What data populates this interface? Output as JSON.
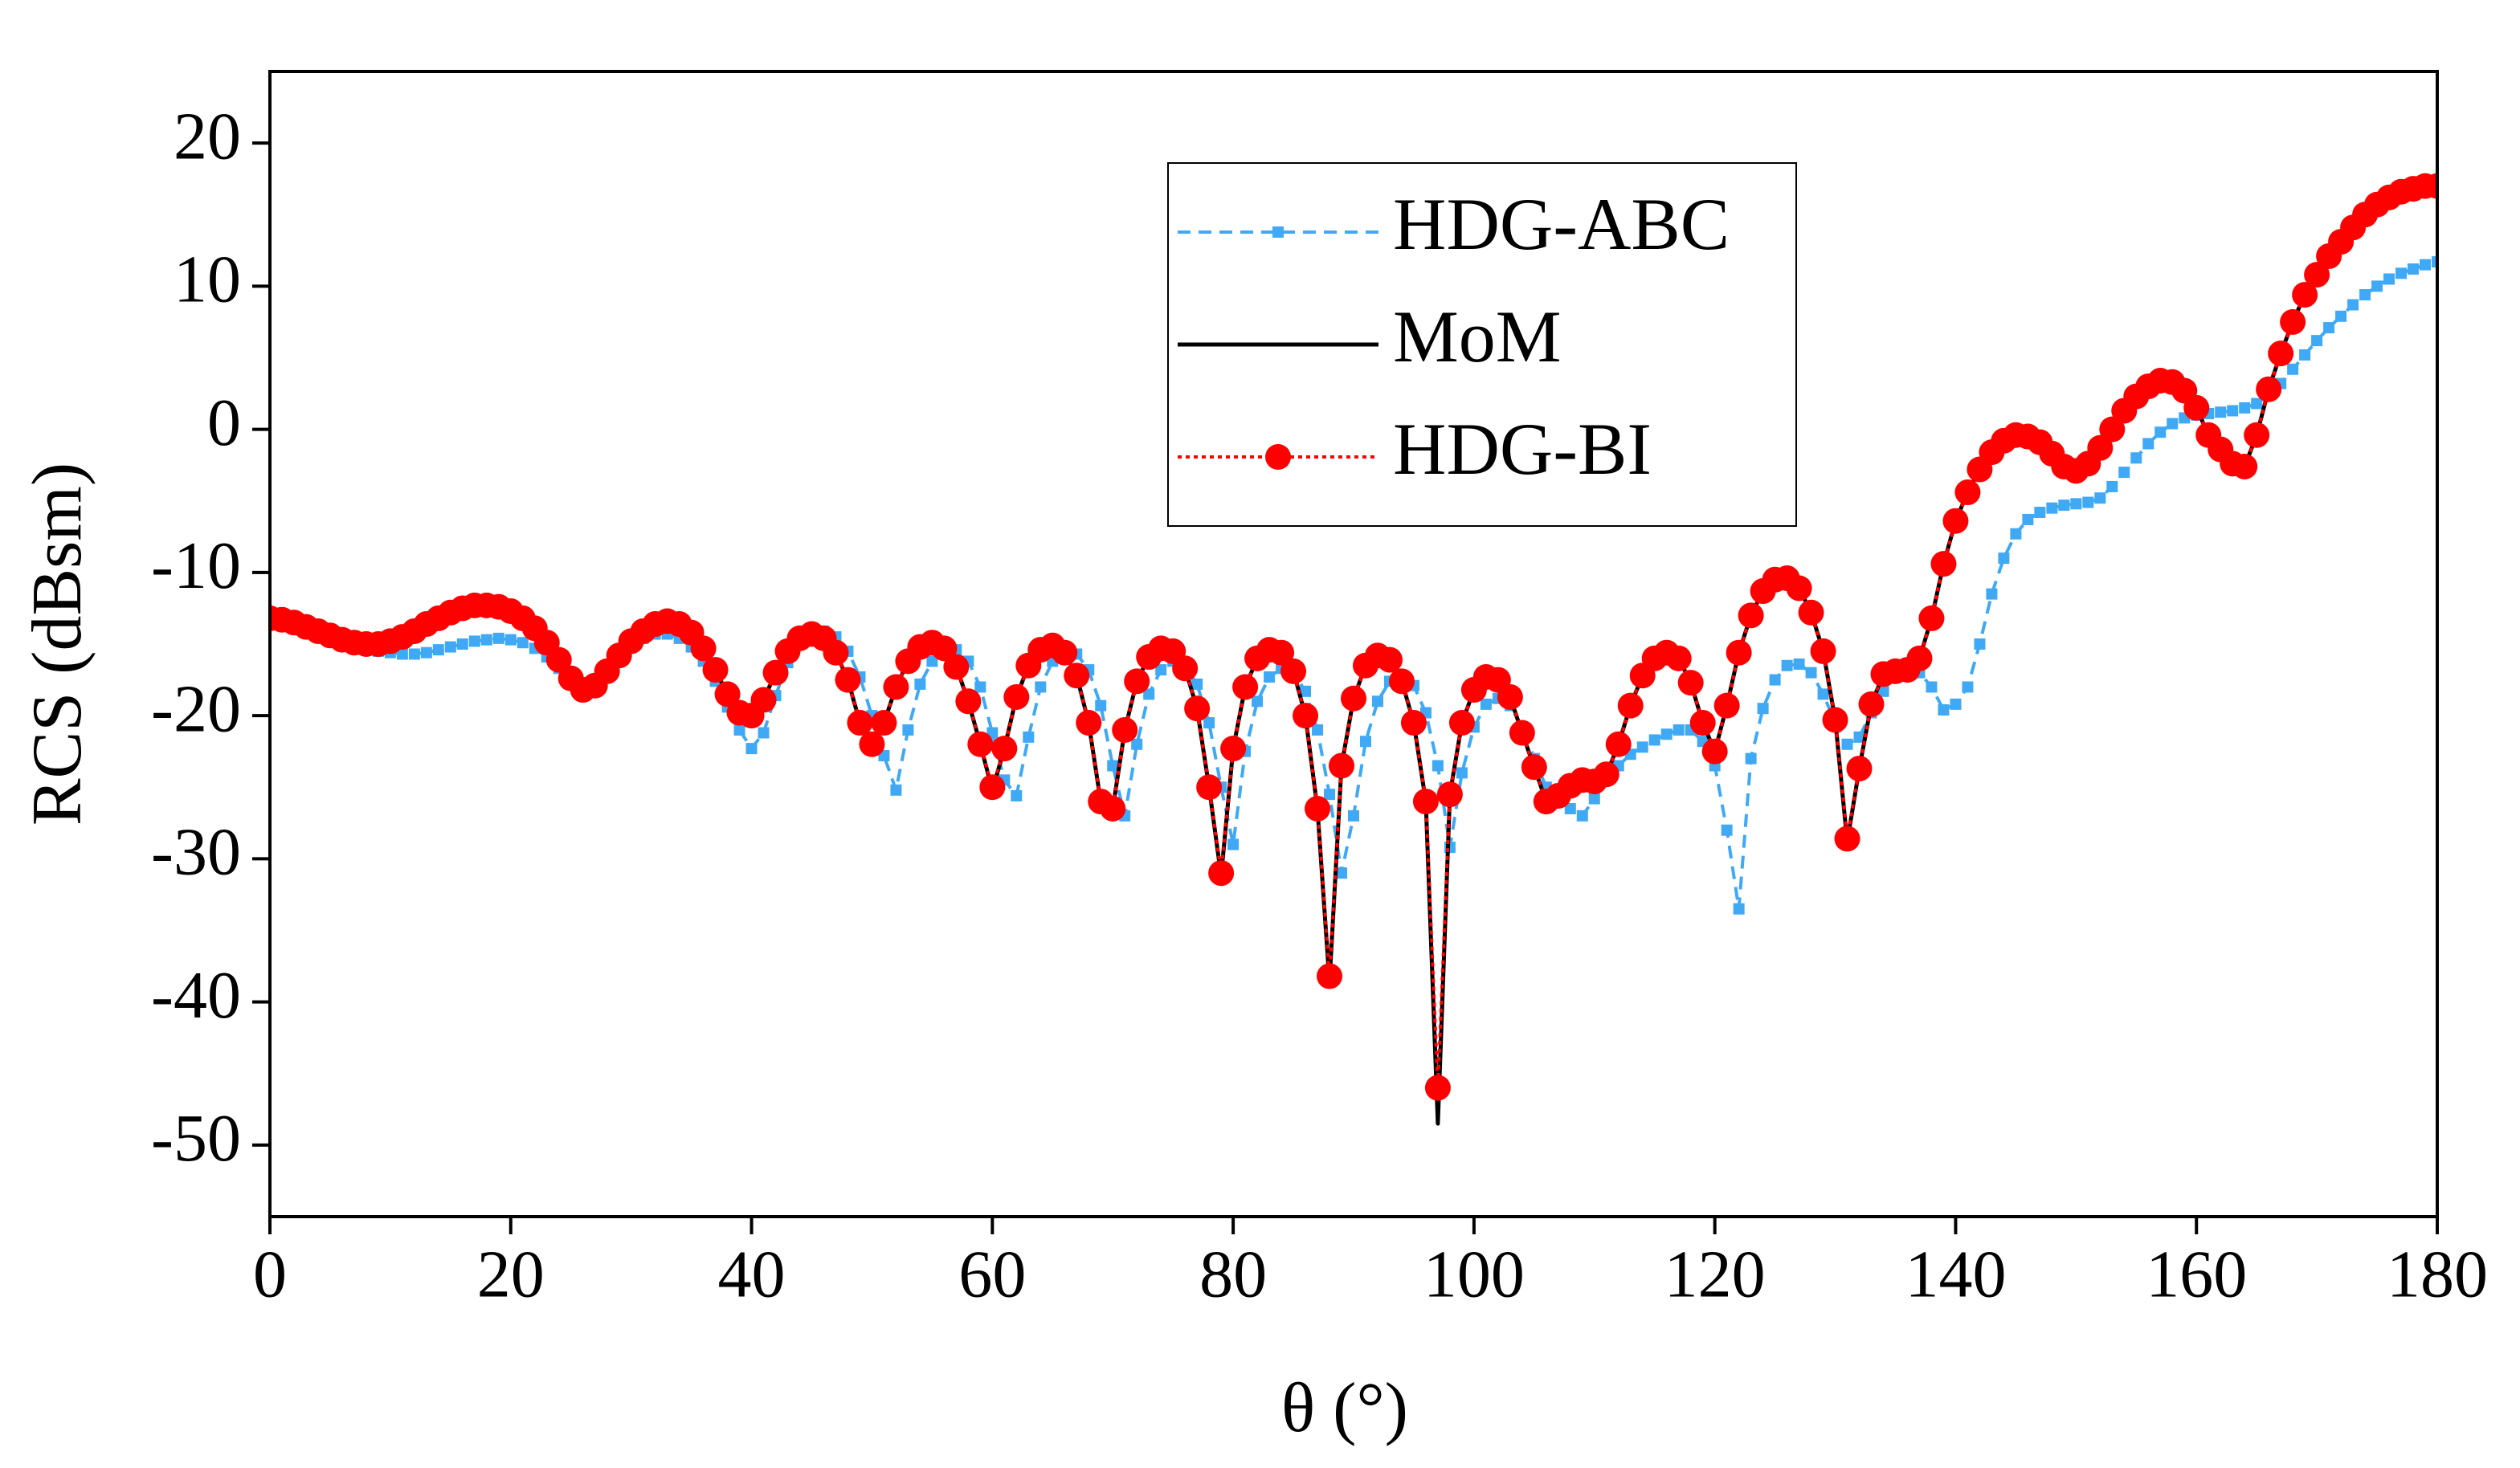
{
  "chart_data": {
    "type": "line",
    "x_label": "θ (°)",
    "y_label": "RCS (dBsm)",
    "xlim": [
      0,
      180
    ],
    "xticks": [
      0,
      20,
      40,
      60,
      80,
      100,
      120,
      140,
      160,
      180
    ],
    "ylim": [
      -55,
      25
    ],
    "yticks": [
      -50,
      -40,
      -30,
      -20,
      -10,
      0,
      10,
      20
    ],
    "grid": false,
    "legend": "upper right",
    "x": [
      0,
      1,
      2,
      3,
      4,
      5,
      6,
      7,
      8,
      9,
      10,
      11,
      12,
      13,
      14,
      15,
      16,
      17,
      18,
      19,
      20,
      21,
      22,
      23,
      24,
      25,
      26,
      27,
      28,
      29,
      30,
      31,
      32,
      33,
      34,
      35,
      36,
      37,
      38,
      39,
      40,
      41,
      42,
      43,
      44,
      45,
      46,
      47,
      48,
      49,
      50,
      51,
      52,
      53,
      54,
      55,
      56,
      57,
      58,
      59,
      60,
      61,
      62,
      63,
      64,
      65,
      66,
      67,
      68,
      69,
      70,
      71,
      72,
      73,
      74,
      75,
      76,
      77,
      78,
      79,
      80,
      81,
      82,
      83,
      84,
      85,
      86,
      87,
      88,
      89,
      90,
      91,
      92,
      93,
      94,
      95,
      96,
      97,
      98,
      99,
      100,
      101,
      102,
      103,
      104,
      105,
      106,
      107,
      108,
      109,
      110,
      111,
      112,
      113,
      114,
      115,
      116,
      117,
      118,
      119,
      120,
      121,
      122,
      123,
      124,
      125,
      126,
      127,
      128,
      129,
      130,
      131,
      132,
      133,
      134,
      135,
      136,
      137,
      138,
      139,
      140,
      141,
      142,
      143,
      144,
      145,
      146,
      147,
      148,
      149,
      150,
      151,
      152,
      153,
      154,
      155,
      156,
      157,
      158,
      159,
      160,
      161,
      162,
      163,
      164,
      165,
      166,
      167,
      168,
      169,
      170,
      171,
      172,
      173,
      174,
      175,
      176,
      177,
      178,
      179,
      180
    ],
    "series": [
      {
        "name": "HDG-ABC",
        "color": "#3fa9f5",
        "line_style": "dashed",
        "marker": "square",
        "values": [
          -13.2,
          -13.3,
          -13.5,
          -13.8,
          -14.1,
          -14.5,
          -14.8,
          -15.1,
          -15.3,
          -15.5,
          -15.6,
          -15.7,
          -15.7,
          -15.6,
          -15.4,
          -15.2,
          -15.0,
          -14.8,
          -14.7,
          -14.6,
          -14.7,
          -14.9,
          -15.3,
          -15.9,
          -16.7,
          -17.5,
          -18.0,
          -17.8,
          -17.0,
          -16.0,
          -15.2,
          -14.6,
          -14.3,
          -14.3,
          -14.6,
          -15.2,
          -16.2,
          -17.6,
          -19.4,
          -21.0,
          -22.3,
          -21.2,
          -18.6,
          -16.3,
          -14.9,
          -14.2,
          -14.1,
          -14.5,
          -15.5,
          -17.3,
          -20.0,
          -22.8,
          -25.2,
          -21.0,
          -17.8,
          -16.2,
          -15.5,
          -15.4,
          -16.2,
          -18.0,
          -21.2,
          -24.5,
          -25.6,
          -21.5,
          -18.0,
          -16.2,
          -15.5,
          -15.7,
          -16.8,
          -19.3,
          -23.5,
          -27.0,
          -22.0,
          -18.5,
          -16.8,
          -16.2,
          -16.5,
          -17.8,
          -20.5,
          -25.0,
          -29.0,
          -22.5,
          -19.0,
          -17.3,
          -16.7,
          -17.0,
          -18.3,
          -21.0,
          -25.5,
          -31.0,
          -27.0,
          -21.8,
          -19.0,
          -17.6,
          -17.3,
          -17.9,
          -19.8,
          -23.5,
          -29.2,
          -24.0,
          -20.8,
          -19.2,
          -18.8,
          -19.3,
          -20.8,
          -23.0,
          -25.0,
          -26.0,
          -26.5,
          -27.0,
          -25.8,
          -24.5,
          -23.5,
          -22.7,
          -22.2,
          -21.7,
          -21.3,
          -21.0,
          -21.0,
          -21.8,
          -23.5,
          -28.0,
          -33.5,
          -23.0,
          -19.5,
          -17.5,
          -16.5,
          -16.4,
          -17.0,
          -18.5,
          -20.5,
          -22.0,
          -21.5,
          -19.8,
          -18.3,
          -17.3,
          -16.8,
          -17.0,
          -18.0,
          -19.6,
          -19.2,
          -18.0,
          -15.0,
          -11.5,
          -9.0,
          -7.3,
          -6.3,
          -5.8,
          -5.5,
          -5.3,
          -5.2,
          -5.1,
          -4.8,
          -4.0,
          -3.0,
          -2.0,
          -1.0,
          -0.2,
          0.4,
          0.8,
          1.0,
          1.1,
          1.2,
          1.3,
          1.5,
          1.8,
          2.4,
          3.2,
          4.2,
          5.2,
          6.2,
          7.1,
          7.9,
          8.7,
          9.4,
          10.0,
          10.5,
          10.9,
          11.2,
          11.5,
          11.7
        ]
      },
      {
        "name": "MoM",
        "color": "#000000",
        "line_style": "solid",
        "marker": "none",
        "values": [
          -13.2,
          -13.3,
          -13.5,
          -13.8,
          -14.1,
          -14.4,
          -14.7,
          -14.9,
          -15.0,
          -15.0,
          -14.8,
          -14.5,
          -14.1,
          -13.6,
          -13.2,
          -12.8,
          -12.5,
          -12.3,
          -12.3,
          -12.4,
          -12.7,
          -13.2,
          -13.9,
          -14.9,
          -16.1,
          -17.4,
          -18.2,
          -17.9,
          -16.9,
          -15.8,
          -14.8,
          -14.1,
          -13.6,
          -13.4,
          -13.6,
          -14.2,
          -15.3,
          -16.8,
          -18.5,
          -19.8,
          -20.0,
          -18.9,
          -17.0,
          -15.5,
          -14.6,
          -14.3,
          -14.6,
          -15.6,
          -17.5,
          -20.5,
          -22.0,
          -20.5,
          -18.0,
          -16.2,
          -15.2,
          -14.9,
          -15.3,
          -16.6,
          -19.0,
          -22.0,
          -25.2,
          -22.3,
          -18.7,
          -16.5,
          -15.4,
          -15.1,
          -15.6,
          -17.2,
          -20.5,
          -26.0,
          -26.5,
          -21.0,
          -17.6,
          -15.9,
          -15.3,
          -15.5,
          -16.7,
          -19.5,
          -25.0,
          -31.2,
          -22.3,
          -18.0,
          -16.0,
          -15.4,
          -15.6,
          -16.9,
          -20.0,
          -26.5,
          -38.6,
          -23.5,
          -18.8,
          -16.5,
          -15.8,
          -16.1,
          -17.6,
          -20.5,
          -26.0,
          -48.5,
          -25.5,
          -20.5,
          -18.2,
          -17.3,
          -17.5,
          -18.7,
          -21.2,
          -23.6,
          -26.0,
          -25.6,
          -24.9,
          -24.5,
          -24.6,
          -24.1,
          -22.0,
          -19.3,
          -17.2,
          -16.0,
          -15.6,
          -16.0,
          -17.7,
          -20.5,
          -22.5,
          -19.3,
          -15.6,
          -13.0,
          -11.3,
          -10.5,
          -10.4,
          -11.1,
          -12.8,
          -15.5,
          -20.3,
          -28.8,
          -23.7,
          -19.2,
          -17.1,
          -16.9,
          -16.8,
          -16.0,
          -13.2,
          -9.4,
          -6.4,
          -4.4,
          -2.8,
          -1.6,
          -0.8,
          -0.4,
          -0.5,
          -0.9,
          -1.7,
          -2.6,
          -2.9,
          -2.4,
          -1.3,
          0.0,
          1.3,
          2.3,
          3.0,
          3.4,
          3.3,
          2.7,
          1.5,
          -0.4,
          -1.4,
          -2.4,
          -2.6,
          -0.4,
          2.8,
          5.3,
          7.5,
          9.4,
          10.8,
          12.1,
          13.1,
          14.1,
          15.0,
          15.7,
          16.2,
          16.6,
          16.8,
          17.0,
          17.0
        ]
      },
      {
        "name": "HDG-BI",
        "color": "#ff0000",
        "line_style": "dotted",
        "marker": "circle",
        "values": [
          -13.2,
          -13.3,
          -13.5,
          -13.8,
          -14.1,
          -14.4,
          -14.7,
          -14.9,
          -15.0,
          -15.0,
          -14.8,
          -14.5,
          -14.1,
          -13.6,
          -13.2,
          -12.8,
          -12.5,
          -12.3,
          -12.3,
          -12.4,
          -12.7,
          -13.2,
          -13.9,
          -14.9,
          -16.1,
          -17.4,
          -18.2,
          -17.9,
          -16.9,
          -15.8,
          -14.8,
          -14.1,
          -13.6,
          -13.4,
          -13.6,
          -14.2,
          -15.3,
          -16.8,
          -18.5,
          -19.8,
          -20.0,
          -18.9,
          -17.0,
          -15.5,
          -14.6,
          -14.3,
          -14.6,
          -15.6,
          -17.5,
          -20.5,
          -22.0,
          -20.5,
          -18.0,
          -16.2,
          -15.2,
          -14.9,
          -15.3,
          -16.6,
          -19.0,
          -22.0,
          -25.0,
          -22.3,
          -18.7,
          -16.5,
          -15.4,
          -15.1,
          -15.6,
          -17.2,
          -20.5,
          -26.0,
          -26.5,
          -21.0,
          -17.6,
          -15.9,
          -15.3,
          -15.5,
          -16.7,
          -19.5,
          -25.0,
          -31.0,
          -22.3,
          -18.0,
          -16.0,
          -15.4,
          -15.6,
          -16.9,
          -20.0,
          -26.5,
          -38.2,
          -23.5,
          -18.8,
          -16.5,
          -15.8,
          -16.1,
          -17.6,
          -20.5,
          -26.0,
          -46.0,
          -25.5,
          -20.5,
          -18.2,
          -17.3,
          -17.5,
          -18.7,
          -21.2,
          -23.6,
          -26.0,
          -25.6,
          -24.9,
          -24.5,
          -24.6,
          -24.1,
          -22.0,
          -19.3,
          -17.2,
          -16.0,
          -15.6,
          -16.0,
          -17.7,
          -20.5,
          -22.5,
          -19.3,
          -15.6,
          -13.0,
          -11.3,
          -10.5,
          -10.4,
          -11.1,
          -12.8,
          -15.5,
          -20.3,
          -28.6,
          -23.7,
          -19.2,
          -17.1,
          -16.9,
          -16.8,
          -16.0,
          -13.2,
          -9.4,
          -6.4,
          -4.4,
          -2.8,
          -1.6,
          -0.8,
          -0.4,
          -0.5,
          -0.9,
          -1.7,
          -2.6,
          -2.9,
          -2.4,
          -1.3,
          0.0,
          1.3,
          2.3,
          3.0,
          3.4,
          3.3,
          2.7,
          1.5,
          -0.4,
          -1.4,
          -2.4,
          -2.6,
          -0.4,
          2.8,
          5.3,
          7.5,
          9.4,
          10.8,
          12.1,
          13.1,
          14.1,
          15.0,
          15.7,
          16.2,
          16.6,
          16.8,
          17.0,
          17.0
        ]
      }
    ]
  }
}
